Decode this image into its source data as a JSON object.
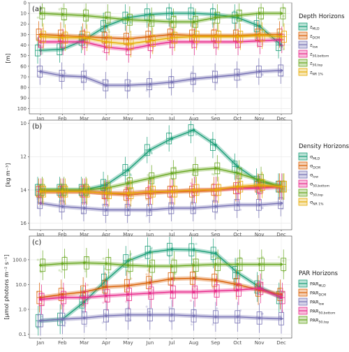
{
  "chart_data": [
    {
      "type": "line",
      "panel_tag": "(a)",
      "ylabel": "[m]",
      "y_reversed": true,
      "ylim": [
        0,
        105
      ],
      "yticks": [
        "0",
        "10",
        "20",
        "30",
        "40",
        "50",
        "60",
        "70",
        "80",
        "90",
        "100"
      ],
      "ytick_values": [
        0,
        10,
        20,
        30,
        40,
        50,
        60,
        70,
        80,
        90,
        100
      ],
      "categories": [
        "Jan",
        "Feb",
        "Mar",
        "Apr",
        "May",
        "Jun",
        "Jul",
        "Aug",
        "Sep",
        "Oct",
        "Nov",
        "Dec"
      ],
      "grid": true,
      "legend_title": "Depth Horizons",
      "legend_position": "right",
      "series": [
        {
          "name": "z_MLD",
          "sub": "MLD",
          "color": "#1b9e77",
          "values": [
            45,
            44,
            35,
            22,
            14,
            11,
            10,
            10,
            11,
            14,
            22,
            40
          ]
        },
        {
          "name": "z_DCM",
          "sub": "DCM",
          "color": "#d95f02",
          "values": [
            30,
            31,
            32,
            33,
            34,
            32,
            30,
            31,
            31,
            31,
            30,
            30
          ]
        },
        {
          "name": "z_low",
          "sub": "low",
          "color": "#7570b3",
          "values": [
            65,
            69,
            70,
            78,
            78,
            77,
            75,
            72,
            70,
            68,
            65,
            64
          ]
        },
        {
          "name": "z_50,bottom",
          "sub": "50,bottom",
          "color": "#e7298a",
          "values": [
            37,
            37,
            37,
            42,
            44,
            40,
            37,
            37,
            37,
            37,
            36,
            35
          ]
        },
        {
          "name": "z_50,top",
          "sub": "50,top",
          "color": "#66a61e",
          "values": [
            10,
            11,
            12,
            14,
            16,
            17,
            18,
            18,
            14,
            12,
            10,
            10
          ]
        },
        {
          "name": "z_NR 1%",
          "sub": "NR 1%",
          "color": "#e6ab02",
          "values": [
            32,
            33,
            33,
            37,
            39,
            36,
            33,
            32,
            32,
            32,
            31,
            32
          ]
        }
      ]
    },
    {
      "type": "line",
      "panel_tag": "(b)",
      "ylabel": "[kg m⁻³]",
      "y_reversed": true,
      "ylim": [
        9.8,
        16.4
      ],
      "yticks": [
        "10",
        "12",
        "14",
        "16"
      ],
      "ytick_values": [
        10,
        12,
        14,
        16
      ],
      "categories": [
        "Jan",
        "Feb",
        "Mar",
        "Apr",
        "May",
        "Jun",
        "Jul",
        "Aug",
        "Sep",
        "Oct",
        "Nov",
        "Dec"
      ],
      "grid": true,
      "legend_title": "Density Horizons",
      "legend_position": "right",
      "series": [
        {
          "name": "σ_MLD",
          "sub": "MLD",
          "color": "#1b9e77",
          "values": [
            14.0,
            14.0,
            14.0,
            13.7,
            12.8,
            11.6,
            10.9,
            10.4,
            11.3,
            12.6,
            13.5,
            13.8
          ]
        },
        {
          "name": "σ_DCM",
          "sub": "DCM",
          "color": "#d95f02",
          "values": [
            14.1,
            14.1,
            14.1,
            14.2,
            14.3,
            14.2,
            14.1,
            14.1,
            14.0,
            13.9,
            13.8,
            13.8
          ]
        },
        {
          "name": "σ_low",
          "sub": "low",
          "color": "#7570b3",
          "values": [
            14.8,
            15.0,
            15.1,
            15.2,
            15.2,
            15.2,
            15.1,
            15.1,
            15.0,
            14.9,
            14.9,
            14.8
          ]
        },
        {
          "name": "σ_50,bottom",
          "sub": "50,bottom",
          "color": "#e7298a",
          "values": [
            14.1,
            14.1,
            14.1,
            14.2,
            14.2,
            14.1,
            14.1,
            14.0,
            14.0,
            13.9,
            13.9,
            13.8
          ]
        },
        {
          "name": "σ_50,top",
          "sub": "50,top",
          "color": "#66a61e",
          "values": [
            14.0,
            14.0,
            14.0,
            13.9,
            13.6,
            13.3,
            13.0,
            12.8,
            12.7,
            13.0,
            13.4,
            13.8
          ]
        },
        {
          "name": "σ_NR 1%",
          "sub": "NR 1%",
          "color": "#e6ab02",
          "values": [
            14.1,
            14.1,
            14.1,
            14.2,
            14.2,
            14.1,
            14.1,
            14.0,
            14.0,
            13.8,
            13.7,
            13.8
          ]
        }
      ]
    },
    {
      "type": "line",
      "panel_tag": "(c)",
      "ylabel": "[µmol photons m⁻² s⁻¹]",
      "y_scale": "log",
      "ylim": [
        0.07,
        900
      ],
      "yticks": [
        "0.1",
        "1.0",
        "10.0",
        "100.0"
      ],
      "ytick_values": [
        0.1,
        1,
        10,
        100
      ],
      "categories": [
        "Jan",
        "Feb",
        "Mar",
        "Apr",
        "May",
        "Jun",
        "Jul",
        "Aug",
        "Sep",
        "Oct",
        "Nov",
        "Dec"
      ],
      "grid": true,
      "legend_title": "PAR Horizons",
      "legend_position": "right",
      "series": [
        {
          "name": "PAR_MLD",
          "sub": "MLD",
          "color": "#1b9e77",
          "values": [
            0.35,
            0.4,
            2,
            15,
            90,
            200,
            260,
            250,
            180,
            30,
            8,
            3
          ]
        },
        {
          "name": "PAR_DCM",
          "sub": "DCM",
          "color": "#d95f02",
          "values": [
            3,
            4,
            5,
            8,
            9,
            12,
            17,
            18,
            15,
            10,
            6,
            4
          ]
        },
        {
          "name": "PAR_low",
          "sub": "low",
          "color": "#7570b3",
          "values": [
            0.35,
            0.4,
            0.45,
            0.55,
            0.6,
            0.6,
            0.6,
            0.55,
            0.5,
            0.5,
            0.45,
            0.42
          ]
        },
        {
          "name": "PAR_50,bottom",
          "sub": "50,bottom",
          "color": "#e7298a",
          "values": [
            2.5,
            3,
            3,
            3.5,
            4,
            4.5,
            5,
            5,
            5.5,
            6,
            7,
            3
          ]
        },
        {
          "name": "PAR_50,top",
          "sub": "50,top",
          "color": "#66a61e",
          "values": [
            60,
            70,
            75,
            70,
            60,
            55,
            55,
            60,
            65,
            65,
            65,
            65
          ]
        }
      ]
    }
  ]
}
